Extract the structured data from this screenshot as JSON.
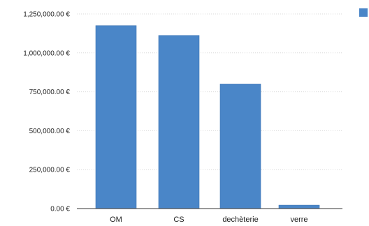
{
  "chart_data": {
    "type": "bar",
    "categories": [
      "OM",
      "CS",
      "dechèterie",
      "verre"
    ],
    "series": [
      {
        "values": [
          1175000,
          1112000,
          800000,
          22000
        ]
      }
    ],
    "y_ticks": [
      "0.00 €",
      "250,000.00 €",
      "500,000.00 €",
      "750,000.00 €",
      "1,000,000.00 €",
      "1,250,000.00 €"
    ],
    "ylim": [
      0,
      1250000
    ],
    "grid": true,
    "legend": "top-right",
    "title": "",
    "xlabel": "",
    "ylabel": "",
    "colors": {
      "bar": "#4a86c8",
      "bar_edge": "#3d74b4"
    }
  }
}
